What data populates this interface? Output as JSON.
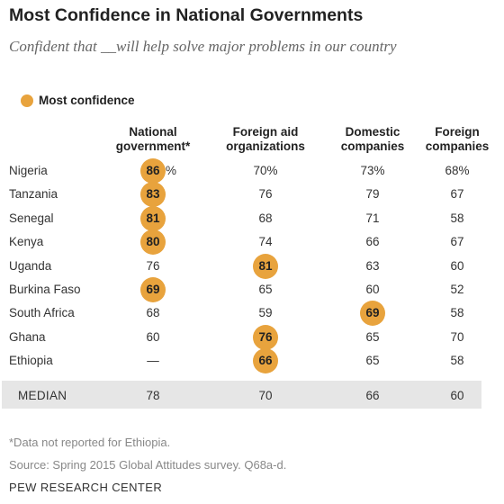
{
  "title": "Most Confidence in National Governments",
  "subtitle": "Confident that __will help solve major problems in our country",
  "legend_label": "Most confidence",
  "colors": {
    "highlight": "#e8a33d",
    "median_bar": "#e6e6e6"
  },
  "chart_data": {
    "type": "table",
    "columns": [
      {
        "line1": "National",
        "line2": "government*"
      },
      {
        "line1": "Foreign aid",
        "line2": "organizations"
      },
      {
        "line1": "Domestic",
        "line2": "companies"
      },
      {
        "line1": "Foreign",
        "line2": "companies"
      }
    ],
    "rows": [
      {
        "country": "Nigeria",
        "values": [
          "86",
          "70%",
          "73%",
          "68%"
        ],
        "highlight": 0,
        "suffix": "%"
      },
      {
        "country": "Tanzania",
        "values": [
          "83",
          "76",
          "79",
          "67"
        ],
        "highlight": 0
      },
      {
        "country": "Senegal",
        "values": [
          "81",
          "68",
          "71",
          "58"
        ],
        "highlight": 0
      },
      {
        "country": "Kenya",
        "values": [
          "80",
          "74",
          "66",
          "67"
        ],
        "highlight": 0
      },
      {
        "country": "Uganda",
        "values": [
          "76",
          "81",
          "63",
          "60"
        ],
        "highlight": 1
      },
      {
        "country": "Burkina Faso",
        "values": [
          "69",
          "65",
          "60",
          "52"
        ],
        "highlight": 0
      },
      {
        "country": "South Africa",
        "values": [
          "68",
          "59",
          "69",
          "58"
        ],
        "highlight": 2
      },
      {
        "country": "Ghana",
        "values": [
          "60",
          "76",
          "65",
          "70"
        ],
        "highlight": 1
      },
      {
        "country": "Ethiopia",
        "values": [
          "—",
          "66",
          "65",
          "58"
        ],
        "highlight": 1
      }
    ],
    "median": {
      "label": "MEDIAN",
      "values": [
        "78",
        "70",
        "66",
        "60"
      ]
    }
  },
  "note": "*Data not reported for Ethiopia.",
  "source": "Source: Spring 2015 Global Attitudes survey. Q68a-d.",
  "brand": "PEW RESEARCH CENTER"
}
